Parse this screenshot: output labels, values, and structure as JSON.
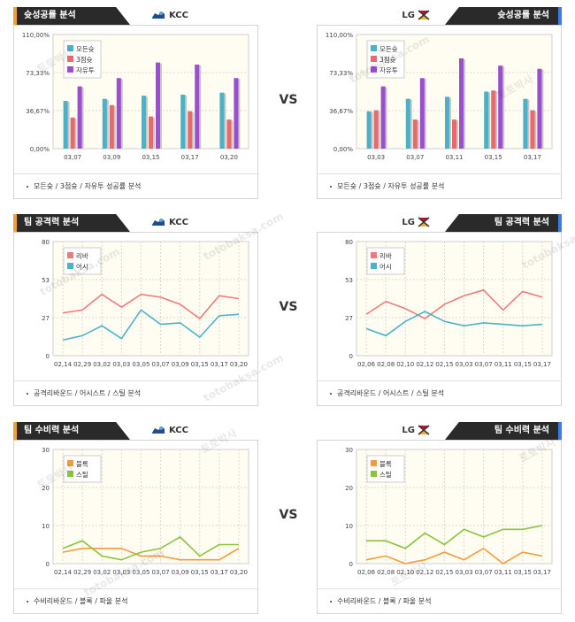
{
  "panels": [
    {
      "id": "home-shot",
      "side": "left",
      "top": 8,
      "left": 15,
      "title": "슛성공률 분석",
      "team": "KCC",
      "caption": "모든슛 / 3점슛 / 자유투 성공률 분석",
      "legend": [
        "모든슛",
        "3점슛",
        "자유투"
      ]
    },
    {
      "id": "away-shot",
      "side": "right",
      "top": 8,
      "left": 358,
      "title": "슛성공률 분석",
      "team": "LG",
      "caption": "모든슛 / 3점슛 / 자유투 성공률 분석",
      "legend": [
        "모든슛",
        "3점슛",
        "자유투"
      ]
    },
    {
      "id": "home-off",
      "side": "left",
      "top": 242,
      "left": 15,
      "title": "팀 공격력 분석",
      "team": "KCC",
      "caption": "공격리바운드 / 어시스트 / 스틸 분석",
      "legend": [
        "리바",
        "어시"
      ]
    },
    {
      "id": "away-off",
      "side": "right",
      "top": 242,
      "left": 358,
      "title": "팀 공격력 분석",
      "team": "LG",
      "caption": "공격리바운드 / 어시스트 / 스틸 분석",
      "legend": [
        "리바",
        "어시"
      ]
    },
    {
      "id": "home-def",
      "side": "left",
      "top": 477,
      "left": 15,
      "title": "팀 수비력 분석",
      "team": "KCC",
      "caption": "수비리바운드 / 블록 / 파울 분석",
      "legend": [
        "블록",
        "스틸"
      ]
    },
    {
      "id": "away-def",
      "side": "right",
      "top": 477,
      "left": 358,
      "title": "팀 수비력 분석",
      "team": "LG",
      "caption": "수비리바운드 / 블록 / 파울 분석",
      "legend": [
        "블록",
        "스틸"
      ]
    }
  ],
  "vs_label": "VS",
  "watermarks": [
    "토토박사",
    "totobaksa.com"
  ],
  "colors": {
    "teal": "#4bb0c8",
    "red": "#e86a6a",
    "purple": "#9b4fcf",
    "line_red": "#ee7b7b",
    "line_teal": "#4ab3c9",
    "orange": "#f39a3a",
    "green": "#8ac43a",
    "plot_bg": "#fffdf2",
    "grid": "#d8d8d8"
  },
  "chart_data": [
    {
      "id": "home-shot",
      "type": "bar",
      "categories": [
        "03,07",
        "03,09",
        "03,15",
        "03,17",
        "03,20"
      ],
      "yticks": [
        "0,00%",
        "36,67%",
        "73,33%",
        "110,00%"
      ],
      "ylim": [
        0,
        110
      ],
      "series": [
        {
          "name": "모든슛",
          "values": [
            46,
            48,
            51,
            52,
            54
          ]
        },
        {
          "name": "3점슛",
          "values": [
            30,
            42,
            31,
            36,
            28
          ]
        },
        {
          "name": "자유투",
          "values": [
            60,
            68,
            83,
            81,
            68
          ]
        }
      ],
      "legend_position": "top-left"
    },
    {
      "id": "away-shot",
      "type": "bar",
      "categories": [
        "03,03",
        "03,07",
        "03,11",
        "03,15",
        "03,17"
      ],
      "yticks": [
        "0,00%",
        "36,67%",
        "73,33%",
        "110,00%"
      ],
      "ylim": [
        0,
        110
      ],
      "series": [
        {
          "name": "모든슛",
          "values": [
            36,
            48,
            50,
            55,
            48
          ]
        },
        {
          "name": "3점슛",
          "values": [
            37,
            28,
            28,
            56,
            37
          ]
        },
        {
          "name": "자유투",
          "values": [
            60,
            68,
            87,
            80,
            77
          ]
        }
      ],
      "legend_position": "top-left"
    },
    {
      "id": "home-off",
      "type": "line",
      "categories": [
        "02,14",
        "02,29",
        "03,02",
        "03,03",
        "03,05",
        "03,07",
        "03,09",
        "03,15",
        "03,17",
        "03,20"
      ],
      "yticks": [
        "0",
        "27",
        "53",
        "80"
      ],
      "ylim": [
        0,
        80
      ],
      "series": [
        {
          "name": "리바",
          "values": [
            30,
            32,
            43,
            34,
            43,
            41,
            36,
            26,
            42,
            40
          ]
        },
        {
          "name": "어시",
          "values": [
            11,
            14,
            21,
            12,
            32,
            22,
            23,
            13,
            28,
            29
          ]
        }
      ],
      "legend_position": "top-left"
    },
    {
      "id": "away-off",
      "type": "line",
      "categories": [
        "02,06",
        "02,08",
        "02,10",
        "02,12",
        "02,15",
        "03,03",
        "03,07",
        "03,11",
        "03,15",
        "03,17"
      ],
      "yticks": [
        "0",
        "27",
        "53",
        "80"
      ],
      "ylim": [
        0,
        80
      ],
      "series": [
        {
          "name": "리바",
          "values": [
            29,
            38,
            33,
            26,
            36,
            42,
            46,
            32,
            45,
            41
          ]
        },
        {
          "name": "어시",
          "values": [
            19,
            14,
            24,
            31,
            24,
            21,
            23,
            22,
            21,
            22
          ]
        }
      ],
      "legend_position": "top-left"
    },
    {
      "id": "home-def",
      "type": "line",
      "categories": [
        "02,14",
        "02,29",
        "03,02",
        "03,03",
        "03,05",
        "03,07",
        "03,09",
        "03,15",
        "03,17",
        "03,20"
      ],
      "yticks": [
        "0",
        "10",
        "20",
        "30"
      ],
      "ylim": [
        0,
        30
      ],
      "series": [
        {
          "name": "블록",
          "values": [
            3,
            4,
            4,
            4,
            2,
            2,
            1,
            1,
            1,
            4
          ]
        },
        {
          "name": "스틸",
          "values": [
            4,
            6,
            2,
            1,
            3,
            4,
            7,
            2,
            5,
            5
          ]
        }
      ],
      "legend_position": "top-left"
    },
    {
      "id": "away-def",
      "type": "line",
      "categories": [
        "02,06",
        "02,08",
        "02,10",
        "02,12",
        "02,15",
        "03,03",
        "03,07",
        "03,11",
        "03,15",
        "03,17"
      ],
      "yticks": [
        "0",
        "10",
        "20",
        "30"
      ],
      "ylim": [
        0,
        30
      ],
      "series": [
        {
          "name": "블록",
          "values": [
            1,
            2,
            0,
            1,
            3,
            1,
            4,
            0,
            3,
            2
          ]
        },
        {
          "name": "스틸",
          "values": [
            6,
            6,
            4,
            8,
            5,
            9,
            7,
            9,
            9,
            10
          ]
        }
      ],
      "legend_position": "top-left"
    }
  ]
}
